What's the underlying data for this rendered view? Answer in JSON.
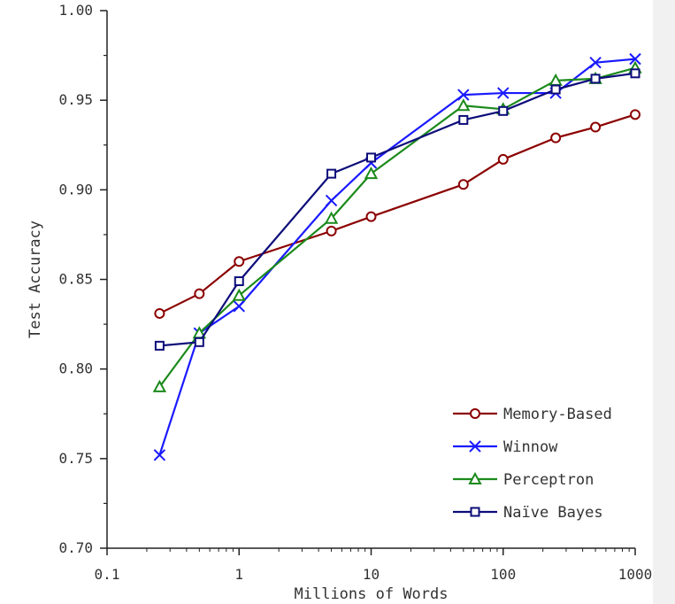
{
  "chart_data": {
    "type": "line",
    "xscale": "log",
    "xlabel": "Millions of Words",
    "ylabel": "Test Accuracy",
    "xlim": [
      0.1,
      1000
    ],
    "ylim": [
      0.7,
      1.0
    ],
    "xticks": [
      0.1,
      1,
      10,
      100,
      1000
    ],
    "xtick_labels": [
      "0.1",
      "1",
      "10",
      "100",
      "1000"
    ],
    "yticks": [
      0.7,
      0.75,
      0.8,
      0.85,
      0.9,
      0.95,
      1.0
    ],
    "ytick_labels": [
      "0.70",
      "0.75",
      "0.80",
      "0.85",
      "0.90",
      "0.95",
      "1.00"
    ],
    "grid": false,
    "legend_position": "bottom-right",
    "series": [
      {
        "name": "Memory-Based",
        "color": "#8b0000",
        "marker": "circle",
        "x": [
          0.25,
          0.5,
          1,
          5,
          10,
          50,
          100,
          250,
          500,
          1000
        ],
        "y": [
          0.831,
          0.842,
          0.86,
          0.877,
          0.885,
          0.903,
          0.917,
          0.929,
          0.935,
          0.942
        ]
      },
      {
        "name": "Winnow",
        "color": "#1a1aff",
        "marker": "x",
        "x": [
          0.25,
          0.5,
          1,
          5,
          10,
          50,
          100,
          250,
          500,
          1000
        ],
        "y": [
          0.752,
          0.82,
          0.835,
          0.894,
          0.915,
          0.953,
          0.954,
          0.954,
          0.971,
          0.973
        ]
      },
      {
        "name": "Perceptron",
        "color": "#1b8a1b",
        "marker": "triangle",
        "x": [
          0.25,
          0.5,
          1,
          5,
          10,
          50,
          100,
          250,
          500,
          1000
        ],
        "y": [
          0.79,
          0.82,
          0.841,
          0.884,
          0.909,
          0.947,
          0.945,
          0.961,
          0.962,
          0.968
        ]
      },
      {
        "name": "Naïve Bayes",
        "color": "#0d0d7a",
        "marker": "square",
        "x": [
          0.25,
          0.5,
          1,
          5,
          10,
          50,
          100,
          250,
          500,
          1000
        ],
        "y": [
          0.813,
          0.815,
          0.849,
          0.909,
          0.918,
          0.939,
          0.944,
          0.956,
          0.962,
          0.965
        ]
      }
    ]
  }
}
